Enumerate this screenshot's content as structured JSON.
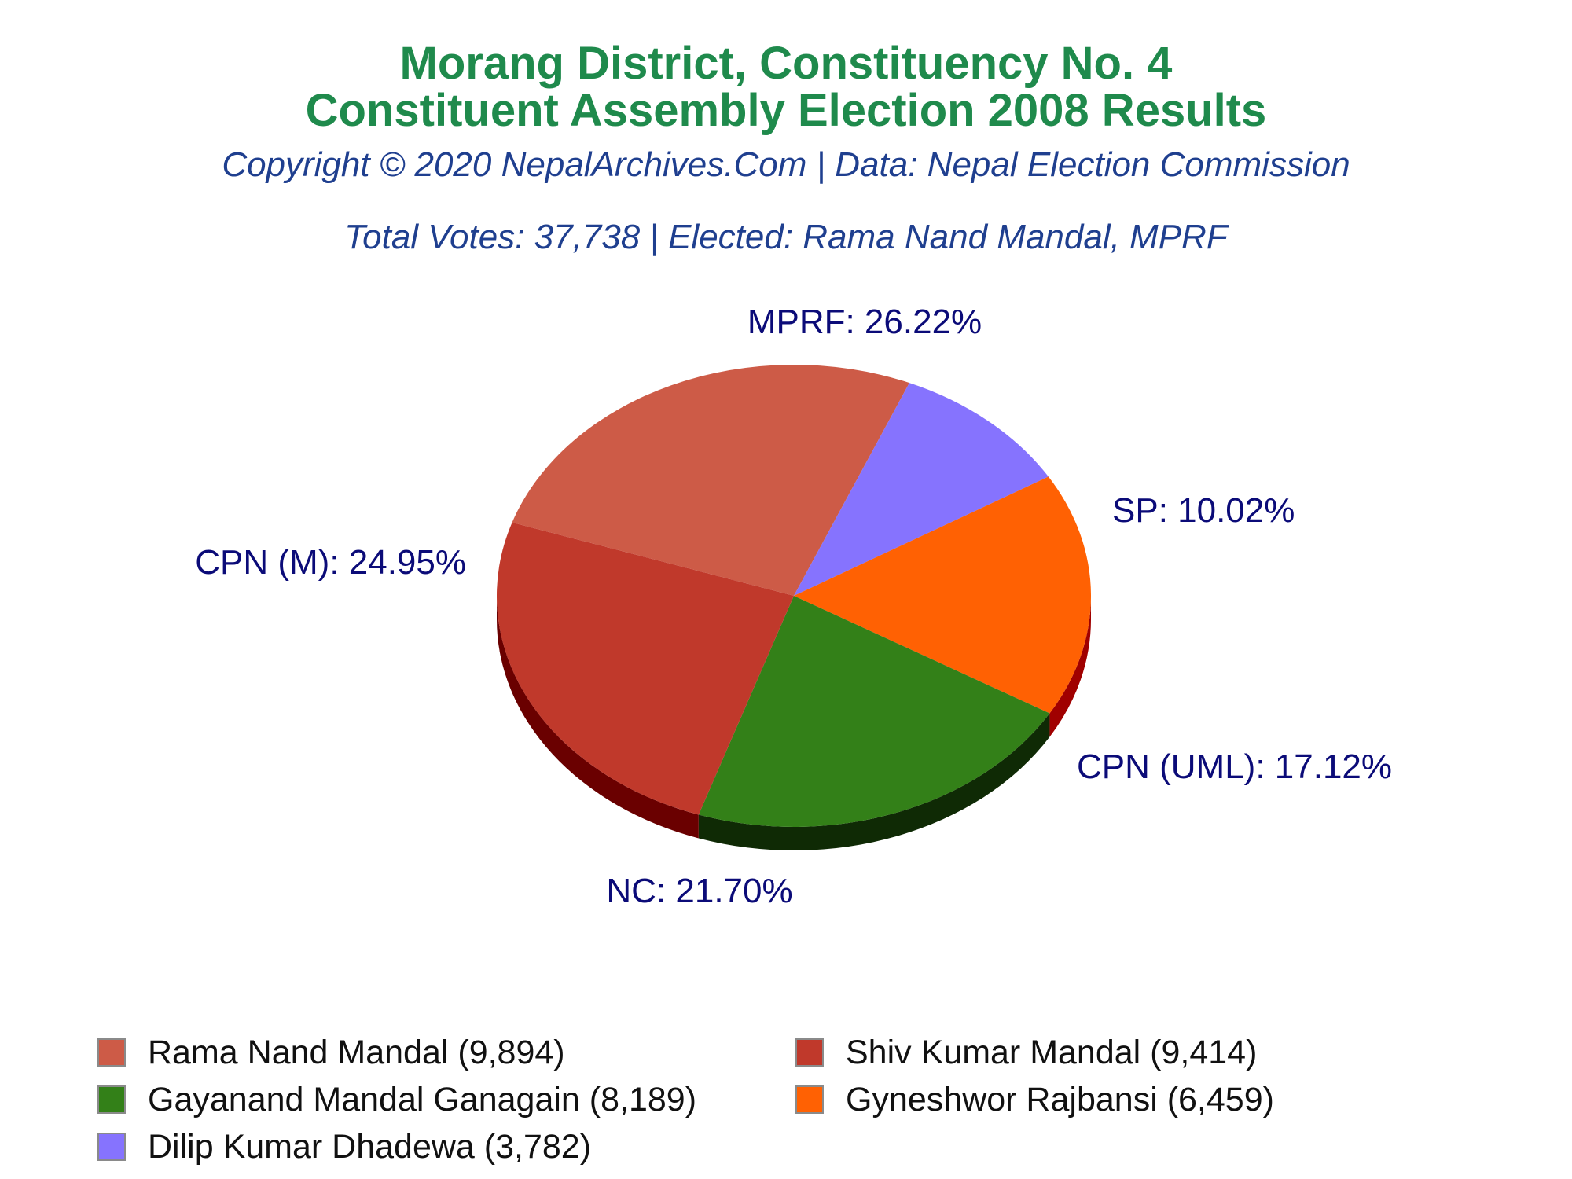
{
  "title_line1": "Morang District, Constituency No. 4",
  "title_line2": "Constituent Assembly Election 2008 Results",
  "subtitle": "Copyright © 2020 NepalArchives.Com | Data: Nepal Election Commission",
  "summary": "Total Votes: 37,738 | Elected: Rama Nand Mandal, MPRF",
  "chart_data": {
    "type": "pie",
    "title": "Morang District, Constituency No. 4",
    "subtitle": "Constituent Assembly Election 2008 Results",
    "legend_position": "bottom",
    "slices": [
      {
        "party": "MPRF",
        "candidate": "Rama Nand Mandal",
        "votes": 9894,
        "percent": 26.22,
        "label": "MPRF: 26.22%",
        "legend": "Rama Nand Mandal (9,894)",
        "color": "#cd5b47"
      },
      {
        "party": "SP",
        "candidate": "Dilip Kumar Dhadewa",
        "votes": 3782,
        "percent": 10.02,
        "label": "SP: 10.02%",
        "legend": "Dilip Kumar Dhadewa (3,782)",
        "color": "#8673fe"
      },
      {
        "party": "CPN (UML)",
        "candidate": "Gyneshwor Rajbansi",
        "votes": 6459,
        "percent": 17.12,
        "label": "CPN (UML): 17.12%",
        "legend": "Gyneshwor Rajbansi (6,459)",
        "color": "#ff6103"
      },
      {
        "party": "NC",
        "candidate": "Gayanand Mandal Ganagain",
        "votes": 8189,
        "percent": 21.7,
        "label": "NC: 21.70%",
        "legend": "Gayanand Mandal Ganagain (8,189)",
        "color": "#338018"
      },
      {
        "party": "CPN (M)",
        "candidate": "Shiv Kumar Mandal",
        "votes": 9414,
        "percent": 24.95,
        "label": "CPN (M): 24.95%",
        "legend": "Shiv Kumar Mandal (9,414)",
        "color": "#c0392b"
      }
    ],
    "side_colors": {
      "MPRF": "#8b0000",
      "SP": "#8b0000",
      "CPN (UML)": "#a00000",
      "NC": "#0f2a05",
      "CPN (M)": "#6a0000"
    }
  }
}
